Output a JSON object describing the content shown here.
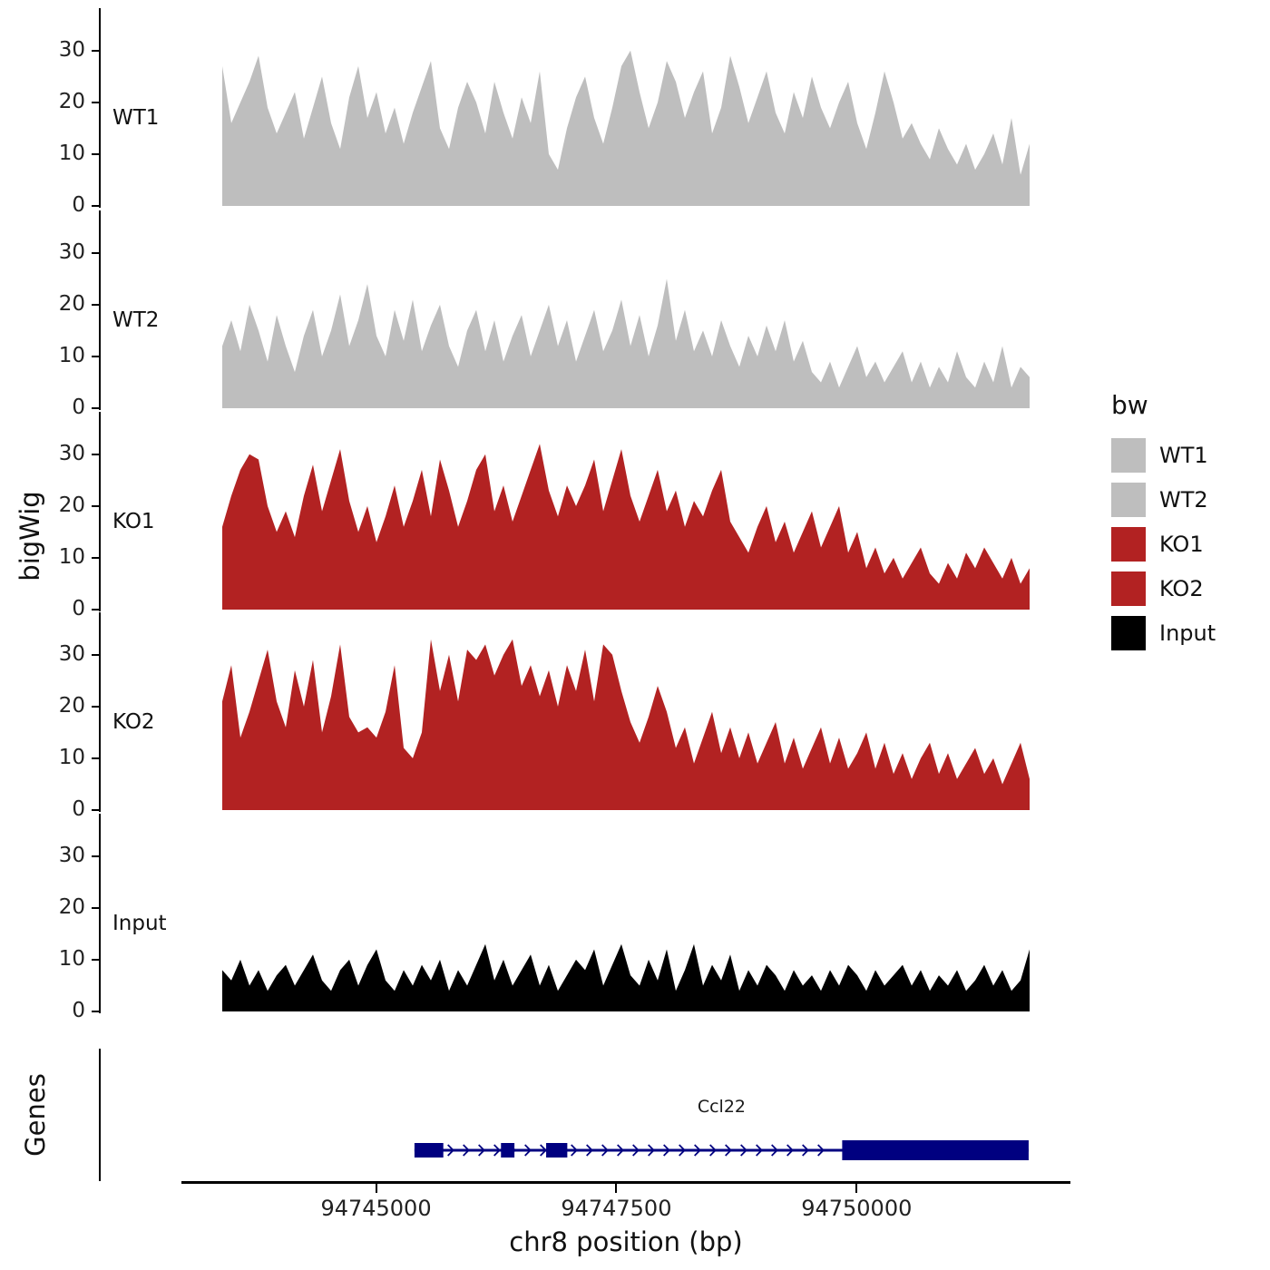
{
  "figure": {
    "y_axis_title": "bigWig",
    "genes_axis_title": "Genes",
    "x_axis_title": "chr8 position (bp)",
    "x_ticks": [
      94745000,
      94747500,
      94750000
    ],
    "x_tick_labels": [
      "94745000",
      "94747500",
      "94750000"
    ],
    "x_range": [
      94743400,
      94751800
    ],
    "y_ticks": [
      0,
      10,
      20,
      30
    ],
    "y_range": [
      0,
      34
    ]
  },
  "legend": {
    "title": "bw",
    "entries": [
      {
        "label": "WT1",
        "color": "#BEBEBE"
      },
      {
        "label": "WT2",
        "color": "#BEBEBE"
      },
      {
        "label": "KO1",
        "color": "#B22222"
      },
      {
        "label": "KO2",
        "color": "#B22222"
      },
      {
        "label": "Input",
        "color": "#000000"
      }
    ]
  },
  "chart_data": [
    {
      "type": "area",
      "name": "WT1",
      "color": "#BEBEBE",
      "ylim": [
        0,
        34
      ],
      "x_range": [
        94743400,
        94751800
      ],
      "values": [
        27,
        16,
        20,
        24,
        29,
        19,
        14,
        18,
        22,
        13,
        19,
        25,
        16,
        11,
        21,
        27,
        17,
        22,
        14,
        19,
        12,
        18,
        23,
        28,
        15,
        11,
        19,
        24,
        20,
        14,
        24,
        18,
        13,
        21,
        16,
        26,
        10,
        7,
        15,
        21,
        25,
        17,
        12,
        19,
        27,
        30,
        22,
        15,
        20,
        28,
        24,
        17,
        22,
        26,
        14,
        19,
        29,
        23,
        16,
        21,
        26,
        18,
        14,
        22,
        17,
        25,
        19,
        15,
        20,
        24,
        16,
        11,
        18,
        26,
        20,
        13,
        16,
        12,
        9,
        15,
        11,
        8,
        12,
        7,
        10,
        14,
        8,
        17,
        6,
        12
      ]
    },
    {
      "type": "area",
      "name": "WT2",
      "color": "#BEBEBE",
      "ylim": [
        0,
        34
      ],
      "x_range": [
        94743400,
        94751800
      ],
      "values": [
        12,
        17,
        11,
        20,
        15,
        9,
        18,
        12,
        7,
        14,
        19,
        10,
        15,
        22,
        12,
        17,
        24,
        14,
        10,
        19,
        13,
        21,
        11,
        16,
        20,
        12,
        8,
        15,
        19,
        11,
        17,
        9,
        14,
        18,
        10,
        15,
        20,
        12,
        17,
        9,
        14,
        19,
        11,
        15,
        21,
        12,
        18,
        10,
        16,
        25,
        13,
        19,
        11,
        15,
        10,
        17,
        12,
        8,
        14,
        10,
        16,
        11,
        17,
        9,
        13,
        7,
        5,
        9,
        4,
        8,
        12,
        6,
        9,
        5,
        8,
        11,
        5,
        9,
        4,
        8,
        5,
        11,
        6,
        4,
        9,
        5,
        12,
        4,
        8,
        6
      ]
    },
    {
      "type": "area",
      "name": "KO1",
      "color": "#B22222",
      "ylim": [
        0,
        34
      ],
      "x_range": [
        94743400,
        94751800
      ],
      "values": [
        16,
        22,
        27,
        30,
        29,
        20,
        15,
        19,
        14,
        22,
        28,
        19,
        25,
        31,
        21,
        15,
        20,
        13,
        18,
        24,
        16,
        21,
        27,
        18,
        29,
        23,
        16,
        21,
        27,
        30,
        19,
        24,
        17,
        22,
        27,
        32,
        23,
        18,
        24,
        20,
        24,
        29,
        19,
        25,
        31,
        22,
        17,
        22,
        27,
        19,
        23,
        16,
        21,
        18,
        23,
        27,
        17,
        14,
        11,
        16,
        20,
        13,
        17,
        11,
        15,
        19,
        12,
        16,
        20,
        11,
        15,
        8,
        12,
        7,
        10,
        6,
        9,
        12,
        7,
        5,
        9,
        6,
        11,
        8,
        12,
        9,
        6,
        10,
        5,
        8
      ]
    },
    {
      "type": "area",
      "name": "KO2",
      "color": "#B22222",
      "ylim": [
        0,
        34
      ],
      "x_range": [
        94743400,
        94751800
      ],
      "values": [
        21,
        28,
        14,
        19,
        25,
        31,
        21,
        16,
        27,
        20,
        29,
        15,
        22,
        32,
        18,
        15,
        16,
        14,
        19,
        28,
        12,
        10,
        15,
        33,
        23,
        30,
        21,
        31,
        29,
        32,
        26,
        30,
        33,
        24,
        28,
        22,
        27,
        20,
        28,
        23,
        31,
        21,
        32,
        30,
        23,
        17,
        13,
        18,
        24,
        19,
        12,
        16,
        9,
        14,
        19,
        11,
        16,
        10,
        15,
        9,
        13,
        17,
        9,
        14,
        8,
        12,
        16,
        9,
        14,
        8,
        11,
        15,
        8,
        13,
        7,
        11,
        6,
        10,
        13,
        7,
        11,
        6,
        9,
        12,
        7,
        10,
        5,
        9,
        13,
        6
      ]
    },
    {
      "type": "area",
      "name": "Input",
      "color": "#000000",
      "ylim": [
        0,
        34
      ],
      "x_range": [
        94743400,
        94751800
      ],
      "values": [
        8,
        6,
        10,
        5,
        8,
        4,
        7,
        9,
        5,
        8,
        11,
        6,
        4,
        8,
        10,
        5,
        9,
        12,
        6,
        4,
        8,
        5,
        9,
        6,
        10,
        4,
        8,
        5,
        9,
        13,
        6,
        10,
        5,
        8,
        11,
        5,
        9,
        4,
        7,
        10,
        8,
        12,
        5,
        9,
        13,
        7,
        5,
        10,
        6,
        12,
        4,
        8,
        13,
        5,
        9,
        6,
        11,
        4,
        8,
        5,
        9,
        7,
        4,
        8,
        5,
        7,
        4,
        8,
        5,
        9,
        7,
        4,
        8,
        5,
        7,
        9,
        5,
        8,
        4,
        7,
        5,
        8,
        4,
        6,
        9,
        5,
        8,
        4,
        6,
        12
      ]
    },
    {
      "type": "gene-model",
      "name": "Ccl22",
      "label": "Ccl22",
      "color": "#000080",
      "strand": "+",
      "start": 94745400,
      "end": 94751790,
      "exons": [
        [
          94745400,
          94745700
        ],
        [
          94746300,
          94746440
        ],
        [
          94746770,
          94746990
        ],
        [
          94749850,
          94751790
        ]
      ]
    }
  ]
}
